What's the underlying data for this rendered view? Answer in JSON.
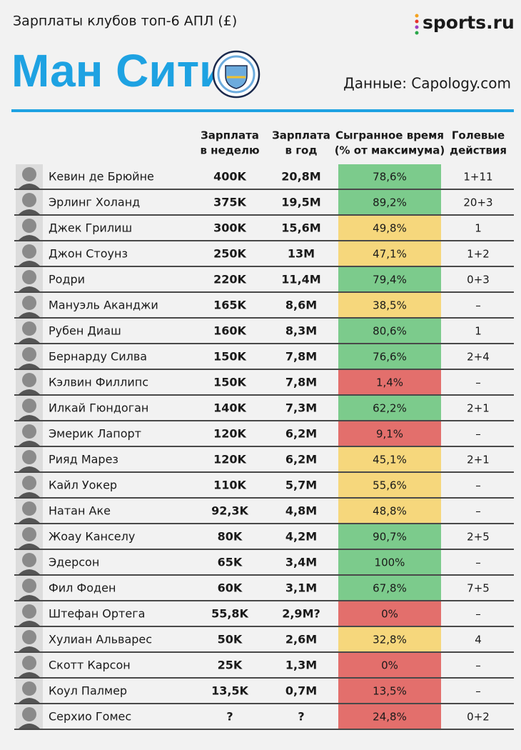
{
  "header": {
    "subtitle": "Зарплаты клубов топ-6 АПЛ (£)",
    "logo": "sports.ru",
    "title": "Ман Сити",
    "source": "Данные: Capology.com"
  },
  "table": {
    "columns": [
      {
        "line1": "Зарплата",
        "line2": "в неделю"
      },
      {
        "line1": "Зарплата",
        "line2": "в год"
      },
      {
        "line1": "Сыгранное время",
        "line2": "(% от максимума)"
      },
      {
        "line1": "Голевые",
        "line2": "действия"
      }
    ],
    "rows": [
      {
        "name": "Кевин де Брюйне",
        "weekly": "400K",
        "yearly": "20,8M",
        "played": "78,6%",
        "actions": "1+11",
        "color": "#7ccb8c"
      },
      {
        "name": "Эрлинг Холанд",
        "weekly": "375K",
        "yearly": "19,5M",
        "played": "89,2%",
        "actions": "20+3",
        "color": "#7ccb8c"
      },
      {
        "name": "Джек Грилиш",
        "weekly": "300K",
        "yearly": "15,6M",
        "played": "49,8%",
        "actions": "1",
        "color": "#f6d77c"
      },
      {
        "name": "Джон Стоунз",
        "weekly": "250K",
        "yearly": "13M",
        "played": "47,1%",
        "actions": "1+2",
        "color": "#f6d77c"
      },
      {
        "name": "Родри",
        "weekly": "220K",
        "yearly": "11,4M",
        "played": "79,4%",
        "actions": "0+3",
        "color": "#7ccb8c"
      },
      {
        "name": "Мануэль Аканджи",
        "weekly": "165K",
        "yearly": "8,6M",
        "played": "38,5%",
        "actions": "–",
        "color": "#f6d77c"
      },
      {
        "name": "Рубен Диаш",
        "weekly": "160K",
        "yearly": "8,3M",
        "played": "80,6%",
        "actions": "1",
        "color": "#7ccb8c"
      },
      {
        "name": "Бернарду Силва",
        "weekly": "150K",
        "yearly": "7,8M",
        "played": "76,6%",
        "actions": "2+4",
        "color": "#7ccb8c"
      },
      {
        "name": "Кэлвин Филлипс",
        "weekly": "150K",
        "yearly": "7,8M",
        "played": "1,4%",
        "actions": "–",
        "color": "#e36f6c"
      },
      {
        "name": "Илкай Гюндоган",
        "weekly": "140K",
        "yearly": "7,3M",
        "played": "62,2%",
        "actions": "2+1",
        "color": "#7ccb8c"
      },
      {
        "name": "Эмерик Лапорт",
        "weekly": "120K",
        "yearly": "6,2M",
        "played": "9,1%",
        "actions": "–",
        "color": "#e36f6c"
      },
      {
        "name": "Рияд Марез",
        "weekly": "120K",
        "yearly": "6,2M",
        "played": "45,1%",
        "actions": "2+1",
        "color": "#f6d77c"
      },
      {
        "name": "Кайл Уокер",
        "weekly": "110K",
        "yearly": "5,7M",
        "played": "55,6%",
        "actions": "–",
        "color": "#f6d77c"
      },
      {
        "name": "Натан Аке",
        "weekly": "92,3K",
        "yearly": "4,8M",
        "played": "48,8%",
        "actions": "–",
        "color": "#f6d77c"
      },
      {
        "name": "Жоау Канселу",
        "weekly": "80K",
        "yearly": "4,2M",
        "played": "90,7%",
        "actions": "2+5",
        "color": "#7ccb8c"
      },
      {
        "name": "Эдерсон",
        "weekly": "65K",
        "yearly": "3,4M",
        "played": "100%",
        "actions": "–",
        "color": "#7ccb8c"
      },
      {
        "name": "Фил Фоден",
        "weekly": "60K",
        "yearly": "3,1M",
        "played": "67,8%",
        "actions": "7+5",
        "color": "#7ccb8c"
      },
      {
        "name": "Штефан Ортега",
        "weekly": "55,8K",
        "yearly": "2,9M?",
        "played": "0%",
        "actions": "–",
        "color": "#e36f6c"
      },
      {
        "name": "Хулиан Альварес",
        "weekly": "50K",
        "yearly": "2,6M",
        "played": "32,8%",
        "actions": "4",
        "color": "#f6d77c"
      },
      {
        "name": "Скотт Карсон",
        "weekly": "25K",
        "yearly": "1,3M",
        "played": "0%",
        "actions": "–",
        "color": "#e36f6c"
      },
      {
        "name": "Коул Палмер",
        "weekly": "13,5K",
        "yearly": "0,7M",
        "played": "13,5%",
        "actions": "–",
        "color": "#e36f6c"
      },
      {
        "name": "Серхио Гомес",
        "weekly": "?",
        "yearly": "?",
        "played": "24,8%",
        "actions": "0+2",
        "color": "#e36f6c"
      }
    ]
  }
}
